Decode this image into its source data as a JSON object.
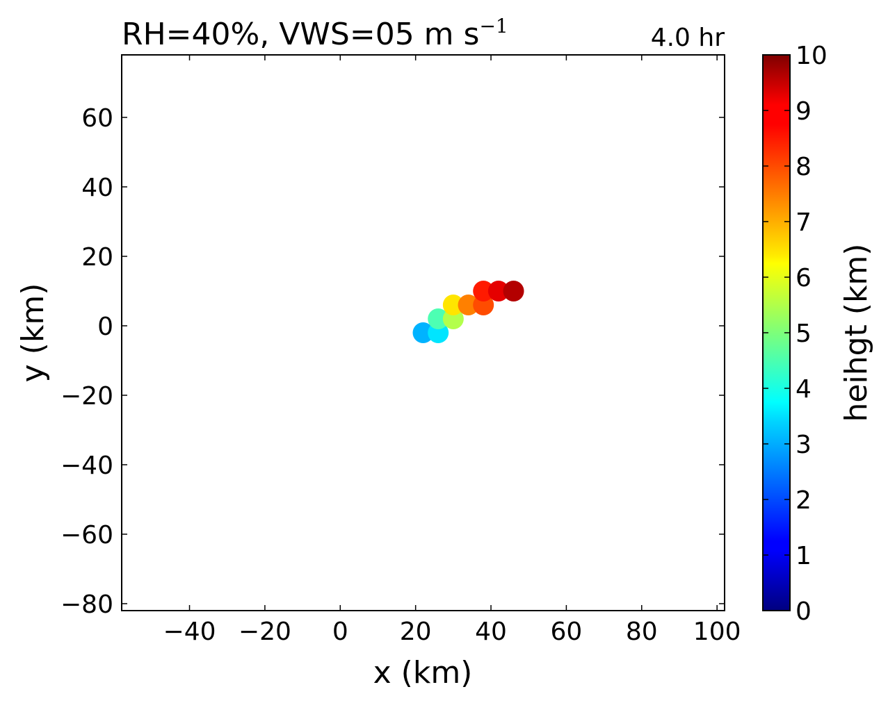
{
  "chart_data": {
    "type": "scatter",
    "title": "RH=40%, VWS=05 m s",
    "title_superscript": "−1",
    "time_label": "4.0 hr",
    "time_color": "#0000ff",
    "xlabel": "x (km)",
    "ylabel": "y (km)",
    "xlim": [
      -58,
      102
    ],
    "ylim": [
      -82,
      78
    ],
    "xticks": [
      -40,
      -20,
      0,
      20,
      40,
      60,
      80,
      100
    ],
    "yticks": [
      -80,
      -60,
      -40,
      -20,
      0,
      20,
      40,
      60
    ],
    "grid": false,
    "colormap": "jet",
    "colorbar": {
      "label": "heihgt (km)",
      "range": [
        0,
        10
      ],
      "ticks": [
        0,
        1,
        2,
        3,
        4,
        5,
        6,
        7,
        8,
        9,
        10
      ]
    },
    "points": [
      {
        "x": 22,
        "y": -2,
        "height": 3
      },
      {
        "x": 26,
        "y": -2,
        "height": 3.5
      },
      {
        "x": 26,
        "y": 2,
        "height": 4.5
      },
      {
        "x": 30,
        "y": 2,
        "height": 5.5
      },
      {
        "x": 30,
        "y": 6,
        "height": 6.5
      },
      {
        "x": 34,
        "y": 6,
        "height": 7.5
      },
      {
        "x": 38,
        "y": 6,
        "height": 8
      },
      {
        "x": 38,
        "y": 10,
        "height": 8.5
      },
      {
        "x": 42,
        "y": 10,
        "height": 9
      },
      {
        "x": 46,
        "y": 10,
        "height": 9.5
      }
    ]
  }
}
